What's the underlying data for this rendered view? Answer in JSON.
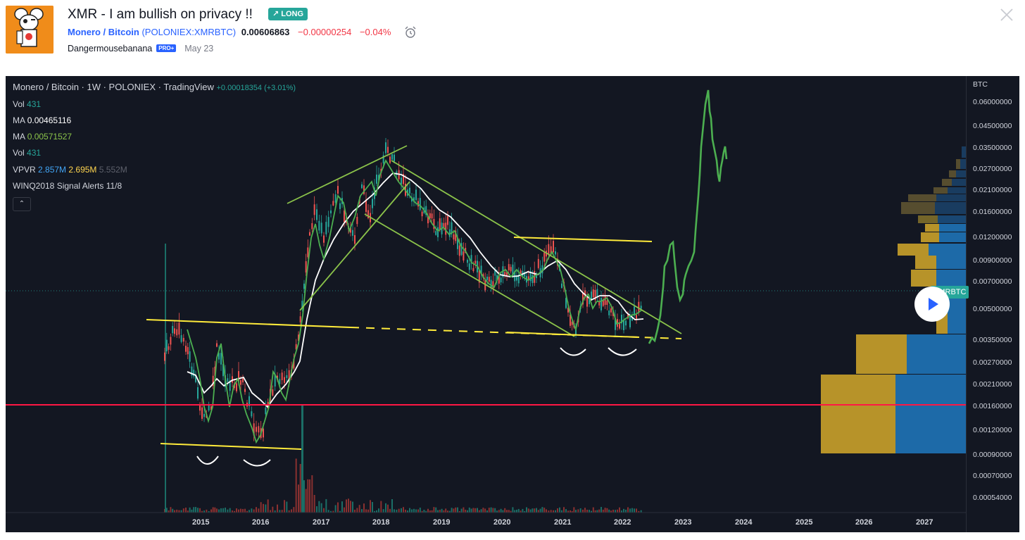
{
  "header": {
    "title": "XMR - I am bullish on privacy !!",
    "badge": "↗ LONG",
    "symbol_name": "Monero / Bitcoin",
    "symbol_exchange": "(POLONIEX:XMRBTC)",
    "price": "0.00606863",
    "change_abs": "−0.00000254",
    "change_pct": "−0.04%",
    "author": "Dangermousebanana",
    "author_badge": "PRO+",
    "date": "May 23"
  },
  "chart": {
    "legend_title": "Monero / Bitcoin · 1W · POLONIEX · TradingView",
    "legend_change": "+0.00018354 (+3.01%)",
    "indicators": [
      {
        "label": "Vol",
        "value": "431"
      },
      {
        "label": "MA",
        "value": "0.00465116"
      },
      {
        "label": "MA",
        "value": "0.00571527"
      },
      {
        "label": "Vol",
        "value": "431"
      }
    ],
    "vpvr_label": "VPVR",
    "vpvr_values": [
      "2.857M",
      "2.695M",
      "5.552M"
    ],
    "signal_label": "WINQ2018 Signal Alerts 11/8",
    "collapse_symbol": "⌃",
    "y_unit": "BTC",
    "y_ticks": [
      "0.06000000",
      "0.04500000",
      "0.03500000",
      "0.02700000",
      "0.02100000",
      "0.01600000",
      "0.01200000",
      "0.00900000",
      "0.00700000",
      "0.00500000",
      "0.00350000",
      "0.00270000",
      "0.00210000",
      "0.00160000",
      "0.00120000",
      "0.00090000",
      "0.00070000",
      "0.00054000"
    ],
    "x_ticks": [
      "2015",
      "2016",
      "2017",
      "2018",
      "2019",
      "2020",
      "2021",
      "2022",
      "2023",
      "2024",
      "2025",
      "2026",
      "2027"
    ],
    "symbol_tag": "XMRBTC",
    "colors": {
      "background": "#131722",
      "up": "#26a69a",
      "down": "#ef5350",
      "ma_fast": "#8bc34a",
      "ma_slow": "#ffffff",
      "trend": "#8bc34a",
      "support": "#ffeb3b",
      "horizontal": "#ff1744",
      "projection": "#4caf50"
    }
  }
}
